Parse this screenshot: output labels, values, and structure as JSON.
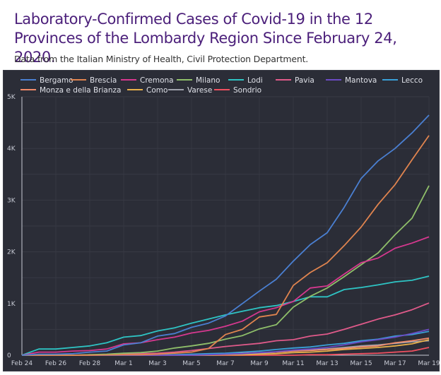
{
  "header": {
    "title": "Laboratory-Confirmed Cases of Covid-19 in the 12 Provinces of the Lombardy Region Since February 24, 2020.",
    "subtitle": "Data from the Italian Ministry of Health, Civil Protection Department."
  },
  "chart_data": {
    "type": "line",
    "title": "Laboratory-Confirmed Cases of Covid-19 in the 12 Provinces of the Lombardy Region Since February 24, 2020.",
    "subtitle": "Data from the Italian Ministry of Health, Civil Protection Department.",
    "xlabel": "",
    "ylabel": "",
    "ylim": [
      0,
      5000
    ],
    "grid": true,
    "legend_position": "top",
    "y_ticks": [
      {
        "value": 0,
        "label": "0"
      },
      {
        "value": 1000,
        "label": "1K"
      },
      {
        "value": 2000,
        "label": "2K"
      },
      {
        "value": 3000,
        "label": "3K"
      },
      {
        "value": 4000,
        "label": "4K"
      },
      {
        "value": 5000,
        "label": "5K"
      }
    ],
    "x": [
      "Feb 24",
      "Feb 25",
      "Feb 26",
      "Feb 27",
      "Feb 28",
      "Feb 29",
      "Mar 1",
      "Mar 2",
      "Mar 3",
      "Mar 4",
      "Mar 5",
      "Mar 6",
      "Mar 7",
      "Mar 8",
      "Mar 9",
      "Mar 10",
      "Mar 11",
      "Mar 12",
      "Mar 13",
      "Mar 14",
      "Mar 15",
      "Mar 16",
      "Mar 17",
      "Mar 18",
      "Mar 19"
    ],
    "x_tick_labels": [
      "Feb 24",
      "Feb 26",
      "Feb 28",
      "Mar 1",
      "Mar 3",
      "Mar 5",
      "Mar 7",
      "Mar 9",
      "Mar 11",
      "Mar 13",
      "Mar 15",
      "Mar 17",
      "Mar 19"
    ],
    "series": [
      {
        "name": "Bergamo",
        "color": "#4a7fd1",
        "values": [
          0,
          20,
          20,
          30,
          60,
          80,
          200,
          240,
          370,
          420,
          540,
          620,
          760,
          1000,
          1240,
          1470,
          1820,
          2140,
          2370,
          2860,
          3420,
          3760,
          4000,
          4300,
          4645
        ]
      },
      {
        "name": "Brescia",
        "color": "#e0844f",
        "values": [
          0,
          0,
          0,
          0,
          0,
          5,
          10,
          10,
          20,
          40,
          60,
          130,
          400,
          500,
          740,
          790,
          1350,
          1600,
          1790,
          2120,
          2480,
          2920,
          3300,
          3780,
          4250
        ]
      },
      {
        "name": "Cremona",
        "color": "#d6388f",
        "values": [
          0,
          60,
          60,
          80,
          90,
          120,
          220,
          240,
          300,
          350,
          430,
          480,
          560,
          660,
          840,
          920,
          1040,
          1300,
          1340,
          1570,
          1790,
          1880,
          2070,
          2170,
          2290
        ]
      },
      {
        "name": "Milano",
        "color": "#8fbf6a",
        "values": [
          0,
          0,
          0,
          0,
          10,
          20,
          40,
          50,
          80,
          140,
          180,
          230,
          310,
          380,
          510,
          590,
          930,
          1140,
          1300,
          1520,
          1750,
          1980,
          2330,
          2650,
          3280
        ]
      },
      {
        "name": "Lodi",
        "color": "#2ec4c4",
        "values": [
          0,
          120,
          120,
          150,
          180,
          240,
          350,
          380,
          470,
          530,
          620,
          700,
          780,
          850,
          920,
          960,
          1040,
          1130,
          1130,
          1270,
          1310,
          1360,
          1420,
          1450,
          1530
        ]
      },
      {
        "name": "Pavia",
        "color": "#e05a8a",
        "values": [
          0,
          0,
          0,
          0,
          10,
          10,
          20,
          30,
          40,
          60,
          90,
          130,
          170,
          200,
          230,
          280,
          300,
          370,
          410,
          500,
          600,
          700,
          780,
          880,
          1010
        ]
      },
      {
        "name": "Mantova",
        "color": "#6b4bc4",
        "values": [
          0,
          0,
          0,
          0,
          0,
          0,
          0,
          0,
          0,
          0,
          0,
          10,
          20,
          30,
          50,
          70,
          100,
          120,
          150,
          200,
          260,
          300,
          350,
          420,
          500
        ]
      },
      {
        "name": "Lecco",
        "color": "#3aa0d8",
        "values": [
          0,
          0,
          0,
          0,
          0,
          0,
          0,
          0,
          10,
          10,
          20,
          30,
          40,
          60,
          80,
          110,
          140,
          160,
          200,
          230,
          280,
          310,
          370,
          400,
          460
        ]
      },
      {
        "name": "Monza e della Brianza",
        "color": "#f28b6a",
        "values": [
          0,
          0,
          0,
          0,
          0,
          0,
          0,
          0,
          0,
          10,
          10,
          20,
          30,
          40,
          50,
          60,
          80,
          90,
          110,
          130,
          160,
          180,
          240,
          280,
          330
        ]
      },
      {
        "name": "Como",
        "color": "#e8b04a",
        "values": [
          0,
          0,
          0,
          0,
          0,
          0,
          0,
          0,
          0,
          0,
          0,
          0,
          10,
          10,
          20,
          30,
          50,
          60,
          80,
          110,
          130,
          150,
          180,
          220,
          300
        ]
      },
      {
        "name": "Varese",
        "color": "#a0a3ad",
        "values": [
          0,
          0,
          0,
          0,
          0,
          0,
          0,
          0,
          0,
          0,
          10,
          10,
          20,
          30,
          40,
          60,
          80,
          100,
          120,
          150,
          180,
          200,
          230,
          260,
          280
        ]
      },
      {
        "name": "Sondrio",
        "color": "#f05060",
        "values": [
          0,
          0,
          0,
          0,
          0,
          0,
          0,
          0,
          0,
          0,
          0,
          0,
          0,
          0,
          0,
          0,
          0,
          10,
          10,
          20,
          30,
          40,
          60,
          80,
          150
        ]
      }
    ]
  }
}
